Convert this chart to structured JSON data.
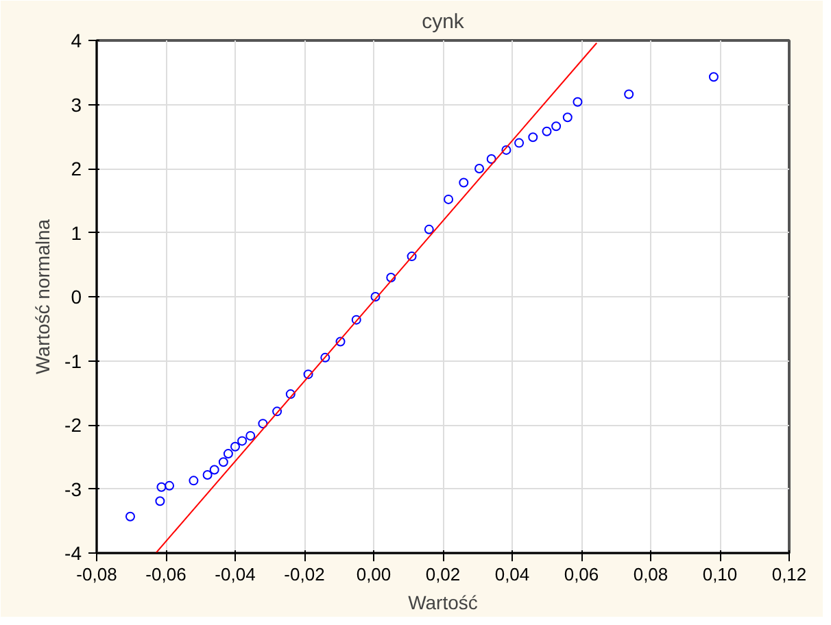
{
  "chart_data": {
    "type": "scatter",
    "title": "cynk",
    "xlabel": "Wartość",
    "ylabel": "Wartość normalna",
    "xlim": [
      -0.08,
      0.12
    ],
    "ylim": [
      -4,
      4
    ],
    "xticks": [
      {
        "value": -0.08,
        "label": "-0,08"
      },
      {
        "value": -0.06,
        "label": "-0,06"
      },
      {
        "value": -0.04,
        "label": "-0,04"
      },
      {
        "value": -0.02,
        "label": "-0,02"
      },
      {
        "value": 0,
        "label": "0,00"
      },
      {
        "value": 0.02,
        "label": "0,02"
      },
      {
        "value": 0.04,
        "label": "0,04"
      },
      {
        "value": 0.06,
        "label": "0,06"
      },
      {
        "value": 0.08,
        "label": "0,08"
      },
      {
        "value": 0.1,
        "label": "0,10"
      },
      {
        "value": 0.12,
        "label": "0,12"
      }
    ],
    "yticks": [
      -4,
      -3,
      -2,
      -1,
      0,
      1,
      2,
      3,
      4
    ],
    "grid": true,
    "series": [
      {
        "marker": "circle",
        "color": "#0000ff",
        "x": [
          -0.0703,
          -0.0617,
          -0.0613,
          -0.059,
          -0.052,
          -0.048,
          -0.046,
          -0.0434,
          -0.042,
          -0.04,
          -0.038,
          -0.0356,
          -0.032,
          -0.0279,
          -0.024,
          -0.0189,
          -0.014,
          -0.0096,
          -0.005,
          0.0005,
          0.005,
          0.011,
          0.016,
          0.0216,
          0.026,
          0.0305,
          0.034,
          0.0383,
          0.042,
          0.046,
          0.05,
          0.0527,
          0.056,
          0.0589,
          0.0737,
          0.0982
        ],
        "values": [
          -3.43,
          -3.19,
          -2.97,
          -2.95,
          -2.87,
          -2.78,
          -2.7,
          -2.58,
          -2.45,
          -2.34,
          -2.25,
          -2.17,
          -1.98,
          -1.79,
          -1.52,
          -1.21,
          -0.95,
          -0.7,
          -0.36,
          0.0,
          0.3,
          0.63,
          1.05,
          1.52,
          1.78,
          2.0,
          2.15,
          2.29,
          2.4,
          2.49,
          2.58,
          2.66,
          2.8,
          3.04,
          3.16,
          3.43
        ]
      },
      {
        "type": "line",
        "marker": "none",
        "color": "#ff0000",
        "x": [
          -0.0629,
          0.0644
        ],
        "values": [
          -4,
          3.96
        ]
      }
    ]
  }
}
